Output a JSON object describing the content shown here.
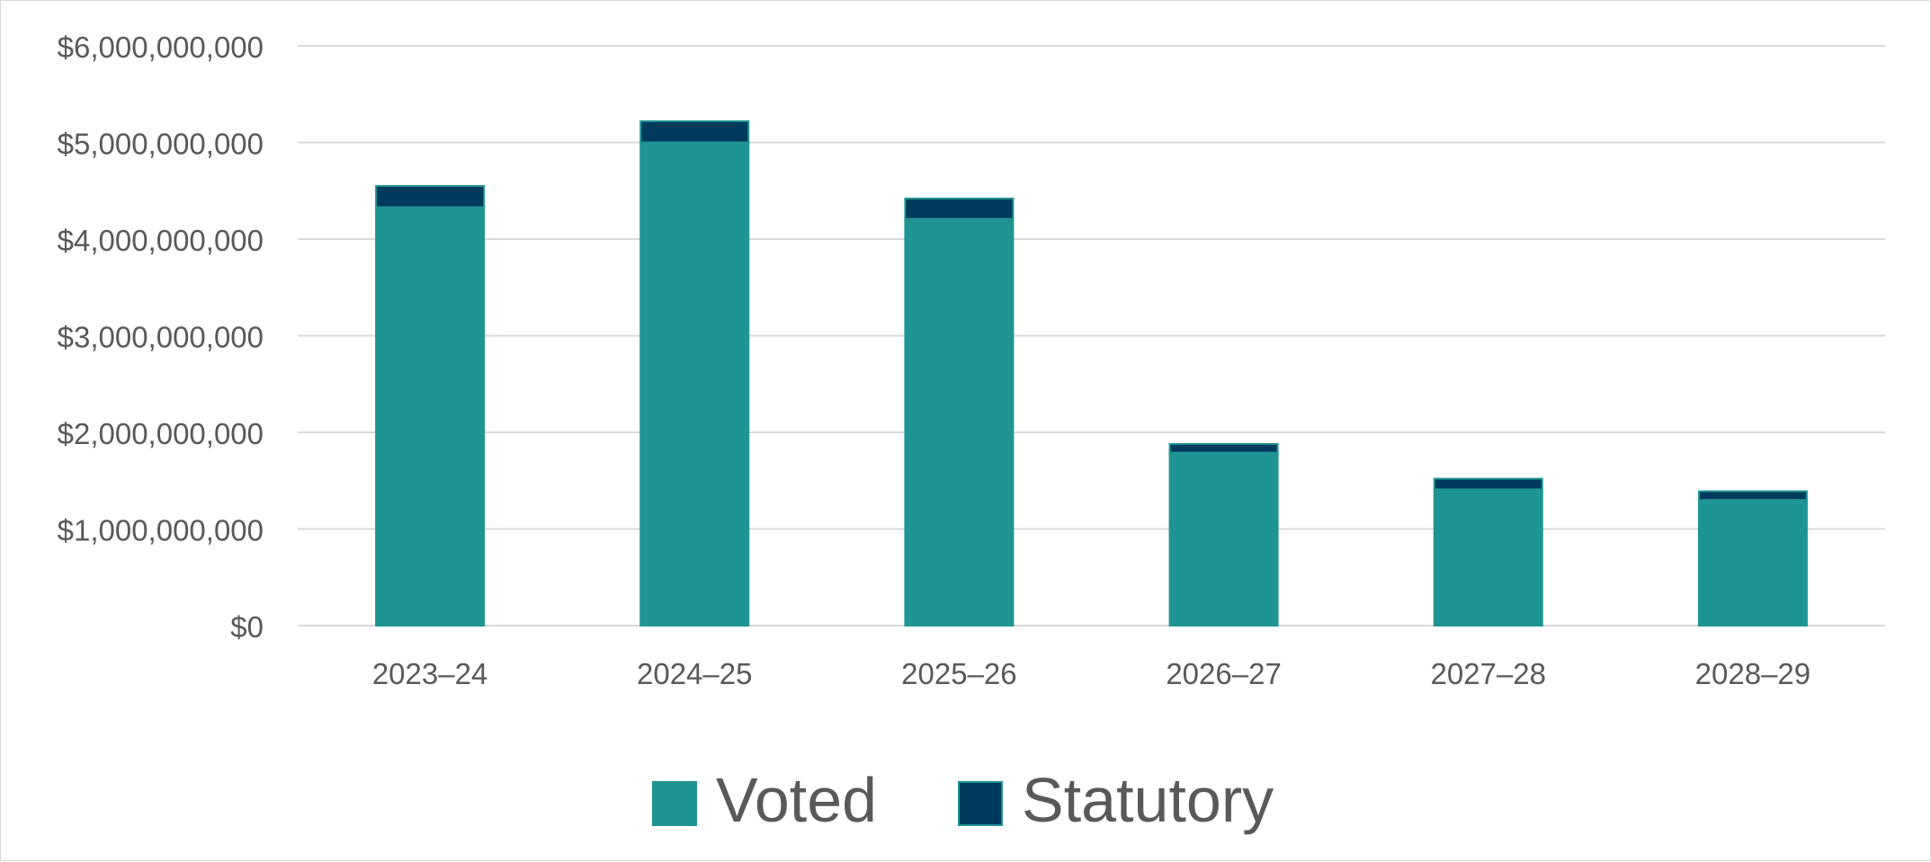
{
  "chart_data": {
    "type": "bar",
    "stacked": true,
    "categories": [
      "2023–24",
      "2024–25",
      "2025–26",
      "2026–27",
      "2027–28",
      "2028–29"
    ],
    "series": [
      {
        "name": "Voted",
        "color": "#1f9593",
        "values": [
          4330000000,
          5000000000,
          4210000000,
          1790000000,
          1410000000,
          1300000000
        ]
      },
      {
        "name": "Statutory",
        "color": "#003a5d",
        "values": [
          220000000,
          220000000,
          210000000,
          90000000,
          110000000,
          90000000
        ]
      }
    ],
    "ylim": [
      0,
      6000000000
    ],
    "yticks": [
      0,
      1000000000,
      2000000000,
      3000000000,
      4000000000,
      5000000000,
      6000000000
    ],
    "ytick_labels": [
      "$0",
      "$1,000,000,000",
      "$2,000,000,000",
      "$3,000,000,000",
      "$4,000,000,000",
      "$5,000,000,000",
      "$6,000,000,000"
    ],
    "grid": true,
    "legend_position": "bottom",
    "gridline_color": "#d9d9d9",
    "bar_outline_color": "#1f9593"
  }
}
